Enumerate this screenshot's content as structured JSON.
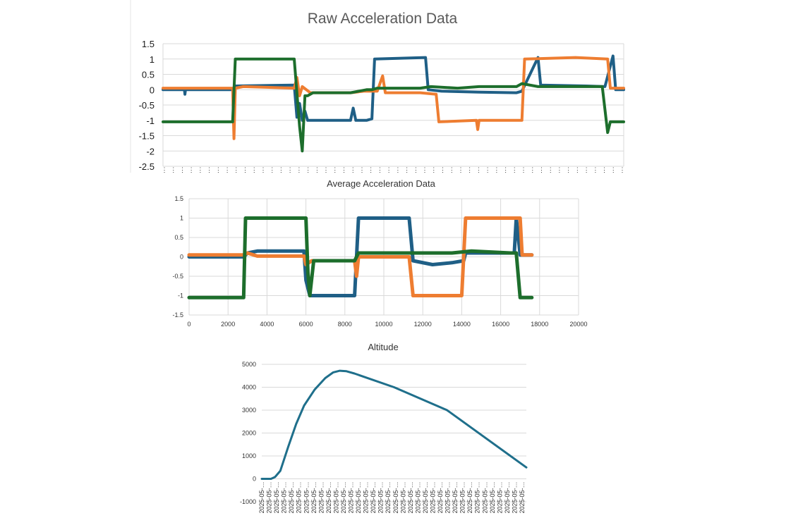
{
  "colors": {
    "blue": "#1f5f86",
    "orange": "#ee7d31",
    "green": "#1d6e2c",
    "altitude": "#1f6f8b"
  },
  "chart_data": [
    {
      "type": "line",
      "title": "Raw Acceleration Data",
      "ylim": [
        -2.5,
        1.5
      ],
      "yticks": [
        "1.5",
        "1",
        "0.5",
        "0",
        "-0.5",
        "-1",
        "-1.5",
        "-2",
        "-2.5"
      ],
      "ytick_values": [
        1.5,
        1,
        0.5,
        0,
        -0.5,
        -1,
        -1.5,
        -2,
        -2.5
      ],
      "x_tick_count": 52,
      "x_tick_label": "⋮",
      "series": [
        {
          "color": "#1f5f86",
          "points": [
            [
              0,
              0
            ],
            [
              8,
              0
            ],
            [
              8.2,
              -0.15
            ],
            [
              8.4,
              0
            ],
            [
              26,
              0
            ],
            [
              27,
              0.12
            ],
            [
              49,
              0.15
            ],
            [
              50,
              -0.9
            ],
            [
              51,
              -0.45
            ],
            [
              52,
              -1
            ],
            [
              53,
              -0.7
            ],
            [
              54,
              -1
            ],
            [
              70,
              -1
            ],
            [
              71,
              -0.6
            ],
            [
              72,
              -1
            ],
            [
              76,
              -1
            ],
            [
              78,
              -0.95
            ],
            [
              79,
              1
            ],
            [
              98,
              1.05
            ],
            [
              99,
              0
            ],
            [
              104,
              -0.05
            ],
            [
              118,
              -0.08
            ],
            [
              132,
              -0.1
            ],
            [
              134,
              -0.05
            ],
            [
              140,
              1.05
            ],
            [
              141,
              0.15
            ],
            [
              158,
              0.12
            ],
            [
              165,
              0.1
            ],
            [
              168,
              1.1
            ],
            [
              169,
              0
            ],
            [
              172,
              0
            ]
          ]
        },
        {
          "color": "#ee7d31",
          "points": [
            [
              0,
              0.05
            ],
            [
              26,
              0.05
            ],
            [
              26.5,
              -1.6
            ],
            [
              27,
              0.05
            ],
            [
              30,
              0.1
            ],
            [
              49,
              0.05
            ],
            [
              50,
              0.4
            ],
            [
              51,
              -0.2
            ],
            [
              52,
              0.1
            ],
            [
              55,
              -0.1
            ],
            [
              65,
              -0.1
            ],
            [
              70,
              -0.1
            ],
            [
              75,
              -0.05
            ],
            [
              80,
              -0.05
            ],
            [
              82,
              0.45
            ],
            [
              83,
              -0.1
            ],
            [
              96,
              -0.1
            ],
            [
              102,
              -0.15
            ],
            [
              103,
              -1.05
            ],
            [
              117,
              -1
            ],
            [
              117.5,
              -1.3
            ],
            [
              118,
              -1
            ],
            [
              132,
              -1
            ],
            [
              134,
              -1
            ],
            [
              135,
              1
            ],
            [
              154,
              1.05
            ],
            [
              166,
              1
            ],
            [
              167,
              0.05
            ],
            [
              172,
              0.05
            ]
          ]
        },
        {
          "color": "#1d6e2c",
          "points": [
            [
              0,
              -1.05
            ],
            [
              26,
              -1.05
            ],
            [
              27,
              1
            ],
            [
              30,
              1
            ],
            [
              49,
              1
            ],
            [
              51,
              -1.2
            ],
            [
              52,
              -2
            ],
            [
              53,
              -0.2
            ],
            [
              54,
              -0.2
            ],
            [
              56,
              -0.1
            ],
            [
              70,
              -0.1
            ],
            [
              76,
              0
            ],
            [
              78,
              0
            ],
            [
              80,
              0.05
            ],
            [
              96,
              0.05
            ],
            [
              100,
              0.1
            ],
            [
              110,
              0.05
            ],
            [
              118,
              0.1
            ],
            [
              126,
              0.1
            ],
            [
              132,
              0.1
            ],
            [
              134,
              0.2
            ],
            [
              140,
              0.1
            ],
            [
              164,
              0.1
            ],
            [
              166,
              -1.4
            ],
            [
              167,
              -1.05
            ],
            [
              172,
              -1.05
            ]
          ]
        }
      ]
    },
    {
      "type": "line",
      "title": "Average Acceleration Data",
      "xlim": [
        0,
        20000
      ],
      "ylim": [
        -1.5,
        1.5
      ],
      "xticks": [
        "0",
        "2000",
        "4000",
        "6000",
        "8000",
        "10000",
        "12000",
        "14000",
        "16000",
        "18000",
        "20000"
      ],
      "xtick_values": [
        0,
        2000,
        4000,
        6000,
        8000,
        10000,
        12000,
        14000,
        16000,
        18000,
        20000
      ],
      "yticks": [
        "1.5",
        "1",
        "0.5",
        "0",
        "-0.5",
        "-1",
        "-1.5"
      ],
      "ytick_values": [
        1.5,
        1,
        0.5,
        0,
        -0.5,
        -1,
        -1.5
      ],
      "series": [
        {
          "color": "#1f5f86",
          "points": [
            [
              0,
              0
            ],
            [
              2800,
              0
            ],
            [
              3000,
              0.1
            ],
            [
              3500,
              0.15
            ],
            [
              5900,
              0.15
            ],
            [
              6000,
              -0.6
            ],
            [
              6200,
              -1
            ],
            [
              8500,
              -1
            ],
            [
              8700,
              1
            ],
            [
              11300,
              1
            ],
            [
              11500,
              -0.1
            ],
            [
              12500,
              -0.2
            ],
            [
              13500,
              -0.15
            ],
            [
              14100,
              -0.1
            ],
            [
              14200,
              0.1
            ],
            [
              16700,
              0.1
            ],
            [
              16800,
              1
            ],
            [
              17000,
              0.05
            ],
            [
              17600,
              0.05
            ]
          ]
        },
        {
          "color": "#ee7d31",
          "points": [
            [
              0,
              0.05
            ],
            [
              2800,
              0.05
            ],
            [
              3000,
              0.1
            ],
            [
              3500,
              0.02
            ],
            [
              5900,
              0.02
            ],
            [
              6000,
              -0.2
            ],
            [
              6300,
              -0.1
            ],
            [
              8500,
              -0.1
            ],
            [
              8600,
              -0.5
            ],
            [
              8700,
              0
            ],
            [
              11300,
              0
            ],
            [
              11500,
              -1
            ],
            [
              14000,
              -1
            ],
            [
              14200,
              1
            ],
            [
              17000,
              1
            ],
            [
              17100,
              0.05
            ],
            [
              17600,
              0.05
            ]
          ]
        },
        {
          "color": "#1d6e2c",
          "points": [
            [
              0,
              -1.05
            ],
            [
              2800,
              -1.05
            ],
            [
              2900,
              1
            ],
            [
              6000,
              1
            ],
            [
              6100,
              -0.4
            ],
            [
              6200,
              -1
            ],
            [
              6400,
              -0.1
            ],
            [
              8500,
              -0.1
            ],
            [
              8700,
              0.1
            ],
            [
              11300,
              0.1
            ],
            [
              13500,
              0.1
            ],
            [
              14500,
              0.15
            ],
            [
              16500,
              0.1
            ],
            [
              16800,
              0.1
            ],
            [
              17000,
              -1.05
            ],
            [
              17600,
              -1.05
            ]
          ]
        }
      ]
    },
    {
      "type": "line",
      "title": "Altitude",
      "ylim": [
        -1000,
        5000
      ],
      "yticks": [
        "5000",
        "4000",
        "3000",
        "2000",
        "1000",
        "0",
        "-1000"
      ],
      "ytick_values": [
        5000,
        4000,
        3000,
        2000,
        1000,
        0,
        -1000
      ],
      "x_tick_count": 36,
      "x_tick_label": "2025-05-…",
      "series": [
        {
          "color": "#1f6f8b",
          "points": [
            [
              0,
              0
            ],
            [
              0.035,
              0
            ],
            [
              0.05,
              80
            ],
            [
              0.07,
              350
            ],
            [
              0.1,
              1400
            ],
            [
              0.13,
              2400
            ],
            [
              0.16,
              3200
            ],
            [
              0.2,
              3900
            ],
            [
              0.24,
              4400
            ],
            [
              0.27,
              4650
            ],
            [
              0.295,
              4720
            ],
            [
              0.32,
              4700
            ],
            [
              0.35,
              4600
            ],
            [
              0.5,
              4000
            ],
            [
              0.7,
              3000
            ],
            [
              1.0,
              500
            ]
          ]
        }
      ]
    }
  ]
}
